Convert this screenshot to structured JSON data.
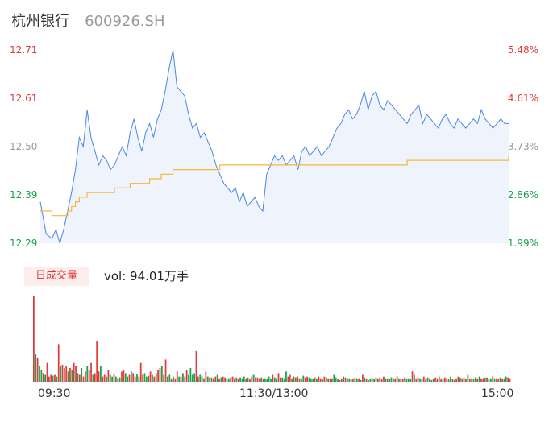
{
  "header": {
    "name": "杭州银行",
    "code": "600926.SH"
  },
  "colors": {
    "price_line": "#4a86e8",
    "price_fill": "#eef3fc",
    "avg_line": "#f5b73b",
    "up": "#e23b3b",
    "down": "#16a34a",
    "neutral": "#999999"
  },
  "volume": {
    "badge": "日成交量",
    "readout": "vol: 94.01万手"
  },
  "chart_data": {
    "type": "line",
    "title": "",
    "y_left_ticks": [
      "12.71",
      "12.61",
      "12.50",
      "12.39",
      "12.29"
    ],
    "y_right_ticks": [
      "5.48%",
      "4.61%",
      "3.73%",
      "2.86%",
      "1.99%"
    ],
    "x_ticks": [
      "09:30",
      "11:30/13:00",
      "15:00"
    ],
    "ylim": [
      12.29,
      12.71
    ],
    "xlim": [
      0,
      240
    ],
    "series": [
      {
        "key": "price",
        "x": [
          0,
          3,
          6,
          8,
          10,
          12,
          14,
          16,
          18,
          20,
          22,
          24,
          26,
          28,
          30,
          32,
          34,
          36,
          38,
          40,
          42,
          44,
          46,
          48,
          50,
          52,
          54,
          56,
          58,
          60,
          62,
          64,
          66,
          68,
          70,
          72,
          74,
          76,
          78,
          80,
          82,
          84,
          86,
          88,
          90,
          92,
          94,
          96,
          98,
          100,
          102,
          104,
          106,
          108,
          110,
          112,
          114,
          116,
          118,
          120,
          122,
          124,
          126,
          128,
          130,
          132,
          134,
          136,
          138,
          140,
          142,
          144,
          146,
          148,
          150,
          152,
          154,
          156,
          158,
          160,
          162,
          164,
          166,
          168,
          170,
          172,
          174,
          176,
          178,
          180,
          182,
          184,
          186,
          188,
          190,
          192,
          194,
          196,
          198,
          200,
          202,
          204,
          206,
          208,
          210,
          212,
          214,
          216,
          218,
          220,
          222,
          224,
          226,
          228,
          230,
          232,
          234,
          236,
          238,
          240
        ],
        "values": [
          12.38,
          12.31,
          12.3,
          12.32,
          12.29,
          12.32,
          12.36,
          12.4,
          12.45,
          12.52,
          12.5,
          12.58,
          12.52,
          12.49,
          12.46,
          12.48,
          12.47,
          12.45,
          12.46,
          12.48,
          12.5,
          12.48,
          12.53,
          12.56,
          12.52,
          12.49,
          12.53,
          12.55,
          12.52,
          12.56,
          12.58,
          12.62,
          12.67,
          12.71,
          12.63,
          12.62,
          12.61,
          12.57,
          12.54,
          12.55,
          12.52,
          12.53,
          12.51,
          12.49,
          12.46,
          12.44,
          12.42,
          12.41,
          12.4,
          12.41,
          12.38,
          12.4,
          12.37,
          12.38,
          12.39,
          12.37,
          12.36,
          12.44,
          12.46,
          12.48,
          12.47,
          12.48,
          12.46,
          12.47,
          12.48,
          12.45,
          12.49,
          12.5,
          12.48,
          12.49,
          12.5,
          12.48,
          12.49,
          12.5,
          12.52,
          12.54,
          12.55,
          12.57,
          12.58,
          12.56,
          12.57,
          12.59,
          12.62,
          12.58,
          12.61,
          12.62,
          12.59,
          12.58,
          12.6,
          12.59,
          12.58,
          12.57,
          12.56,
          12.55,
          12.57,
          12.58,
          12.59,
          12.55,
          12.57,
          12.56,
          12.55,
          12.54,
          12.56,
          12.57,
          12.55,
          12.54,
          12.56,
          12.55,
          12.54,
          12.55,
          12.56,
          12.55,
          12.58,
          12.56,
          12.55,
          12.54,
          12.55,
          12.56,
          12.55,
          12.55
        ]
      },
      {
        "key": "average",
        "x": [
          0,
          3,
          6,
          8,
          10,
          12,
          14,
          16,
          18,
          20,
          22,
          24,
          26,
          28,
          30,
          32,
          34,
          36,
          38,
          40,
          42,
          44,
          46,
          48,
          50,
          52,
          54,
          56,
          58,
          60,
          62,
          64,
          66,
          68,
          70,
          72,
          74,
          76,
          78,
          80,
          82,
          84,
          86,
          88,
          90,
          92,
          94,
          96,
          98,
          100,
          102,
          104,
          106,
          108,
          110,
          112,
          114,
          116,
          118,
          120,
          122,
          124,
          126,
          128,
          130,
          132,
          134,
          136,
          138,
          140,
          142,
          144,
          146,
          148,
          150,
          152,
          154,
          156,
          158,
          160,
          162,
          164,
          166,
          168,
          170,
          172,
          174,
          176,
          178,
          180,
          182,
          184,
          186,
          188,
          190,
          192,
          194,
          196,
          198,
          200,
          202,
          204,
          206,
          208,
          210,
          212,
          214,
          216,
          218,
          220,
          222,
          224,
          226,
          228,
          230,
          232,
          234,
          236,
          238,
          240
        ],
        "values": [
          12.36,
          12.36,
          12.35,
          12.35,
          12.35,
          12.35,
          12.36,
          12.37,
          12.38,
          12.39,
          12.39,
          12.4,
          12.4,
          12.4,
          12.4,
          12.4,
          12.4,
          12.4,
          12.41,
          12.41,
          12.41,
          12.41,
          12.42,
          12.42,
          12.42,
          12.42,
          12.42,
          12.43,
          12.43,
          12.43,
          12.44,
          12.44,
          12.44,
          12.45,
          12.45,
          12.45,
          12.45,
          12.45,
          12.45,
          12.45,
          12.45,
          12.45,
          12.45,
          12.45,
          12.45,
          12.46,
          12.46,
          12.46,
          12.46,
          12.46,
          12.46,
          12.46,
          12.46,
          12.46,
          12.46,
          12.46,
          12.46,
          12.46,
          12.46,
          12.46,
          12.46,
          12.46,
          12.46,
          12.46,
          12.46,
          12.46,
          12.46,
          12.46,
          12.46,
          12.46,
          12.46,
          12.46,
          12.46,
          12.46,
          12.46,
          12.46,
          12.46,
          12.46,
          12.46,
          12.46,
          12.46,
          12.46,
          12.46,
          12.46,
          12.46,
          12.46,
          12.46,
          12.46,
          12.46,
          12.46,
          12.46,
          12.46,
          12.46,
          12.47,
          12.47,
          12.47,
          12.47,
          12.47,
          12.47,
          12.47,
          12.47,
          12.47,
          12.47,
          12.47,
          12.47,
          12.47,
          12.47,
          12.47,
          12.47,
          12.47,
          12.47,
          12.47,
          12.47,
          12.47,
          12.47,
          12.47,
          12.47,
          12.47,
          12.47,
          12.48
        ]
      }
    ],
    "volume": {
      "unit": "relative",
      "values": [
        100,
        32,
        28,
        18,
        14,
        10,
        8,
        22,
        6,
        8,
        7,
        8,
        6,
        44,
        18,
        20,
        16,
        18,
        12,
        16,
        14,
        22,
        18,
        10,
        8,
        16,
        6,
        12,
        18,
        14,
        22,
        8,
        10,
        48,
        12,
        18,
        6,
        8,
        6,
        14,
        8,
        6,
        9,
        6,
        4,
        5,
        12,
        14,
        10,
        6,
        8,
        12,
        10,
        6,
        9,
        6,
        22,
        8,
        10,
        6,
        7,
        12,
        8,
        6,
        10,
        14,
        16,
        18,
        8,
        26,
        6,
        8,
        4,
        6,
        4,
        12,
        6,
        6,
        10,
        6,
        14,
        8,
        16,
        8,
        10,
        36,
        6,
        8,
        6,
        4,
        12,
        6,
        5,
        5,
        4,
        6,
        8,
        3,
        5,
        6,
        5,
        4,
        4,
        5,
        6,
        4,
        5,
        3,
        5,
        4,
        6,
        4,
        5,
        3,
        6,
        8,
        5,
        5,
        4,
        5,
        3,
        4,
        3,
        6,
        4,
        8,
        5,
        4,
        10,
        5,
        5,
        4,
        12,
        6,
        8,
        4,
        6,
        5,
        6,
        4,
        4,
        7,
        5,
        6,
        5,
        4,
        3,
        5,
        4,
        6,
        4,
        3,
        6,
        5,
        4,
        4,
        4,
        8,
        5,
        3,
        2,
        4,
        6,
        5,
        4,
        4,
        3,
        3,
        5,
        4,
        4,
        2,
        8,
        5,
        3,
        2,
        4,
        4,
        3,
        5,
        4,
        5,
        3,
        6,
        4,
        4,
        3,
        5,
        4,
        4,
        6,
        4,
        4,
        3,
        5,
        4,
        4,
        3,
        12,
        8,
        4,
        5,
        4,
        3,
        6,
        3,
        5,
        4,
        2,
        3,
        5,
        4,
        6,
        3,
        4,
        5,
        4,
        3,
        6,
        3,
        2,
        4,
        6,
        5,
        4,
        5,
        3,
        8,
        4,
        4,
        3,
        5,
        4,
        6,
        4,
        4,
        5,
        5,
        3,
        4,
        6,
        4,
        4,
        3,
        5,
        4,
        4,
        6,
        5,
        4
      ],
      "colors": [
        "up",
        "down",
        "up",
        "down",
        "down",
        "up",
        "down",
        "up",
        "up",
        "up",
        "down",
        "up",
        "down",
        "up",
        "down",
        "up",
        "up",
        "up",
        "down",
        "up",
        "down",
        "up",
        "up",
        "down",
        "up",
        "down",
        "up",
        "up",
        "down",
        "up",
        "up",
        "down",
        "up",
        "up",
        "up",
        "down",
        "up",
        "up",
        "down",
        "up",
        "down",
        "down",
        "up",
        "down",
        "up",
        "down",
        "up",
        "up",
        "down",
        "down",
        "up",
        "down",
        "up",
        "up",
        "down",
        "down",
        "up",
        "up",
        "down",
        "down",
        "up",
        "up",
        "down",
        "up",
        "down",
        "up",
        "up",
        "down",
        "up",
        "up",
        "down",
        "down",
        "up",
        "down",
        "up",
        "up",
        "down",
        "up",
        "down",
        "up",
        "up",
        "down",
        "down",
        "down",
        "down",
        "up",
        "up",
        "down",
        "down",
        "up",
        "up",
        "down",
        "up",
        "down",
        "up",
        "up",
        "down",
        "up",
        "down",
        "up",
        "up",
        "down",
        "down",
        "up",
        "up",
        "down",
        "up",
        "up",
        "down",
        "down",
        "down",
        "up",
        "down",
        "up",
        "up",
        "down",
        "up",
        "up",
        "up",
        "down",
        "up",
        "down",
        "down",
        "down",
        "down",
        "up",
        "down",
        "down",
        "up",
        "up",
        "down",
        "down",
        "down",
        "up",
        "up",
        "down",
        "up",
        "down",
        "up",
        "up",
        "down",
        "down",
        "up",
        "up",
        "down",
        "down",
        "down",
        "up",
        "down",
        "up",
        "up",
        "down",
        "up",
        "up",
        "down",
        "up",
        "up",
        "down",
        "down",
        "down",
        "up",
        "up",
        "down",
        "up",
        "down",
        "down",
        "up",
        "up",
        "down",
        "down",
        "up",
        "down",
        "up",
        "down",
        "up",
        "up",
        "down",
        "down",
        "down",
        "up",
        "up",
        "down",
        "up",
        "up",
        "down",
        "down",
        "up",
        "down",
        "down",
        "up",
        "up",
        "down",
        "up",
        "up",
        "up",
        "down",
        "down",
        "down",
        "up",
        "down",
        "up",
        "up",
        "down",
        "down",
        "up",
        "up",
        "down",
        "up",
        "down",
        "down",
        "up",
        "up",
        "down",
        "up",
        "down",
        "up",
        "up",
        "down",
        "down",
        "up",
        "down",
        "up",
        "up",
        "down",
        "up",
        "down",
        "up",
        "down",
        "up",
        "up",
        "down",
        "down",
        "up",
        "down",
        "up",
        "up",
        "down",
        "up",
        "down",
        "down",
        "up",
        "down",
        "up",
        "up",
        "down",
        "up",
        "down",
        "down",
        "up",
        "up",
        "down",
        "up"
      ]
    }
  }
}
